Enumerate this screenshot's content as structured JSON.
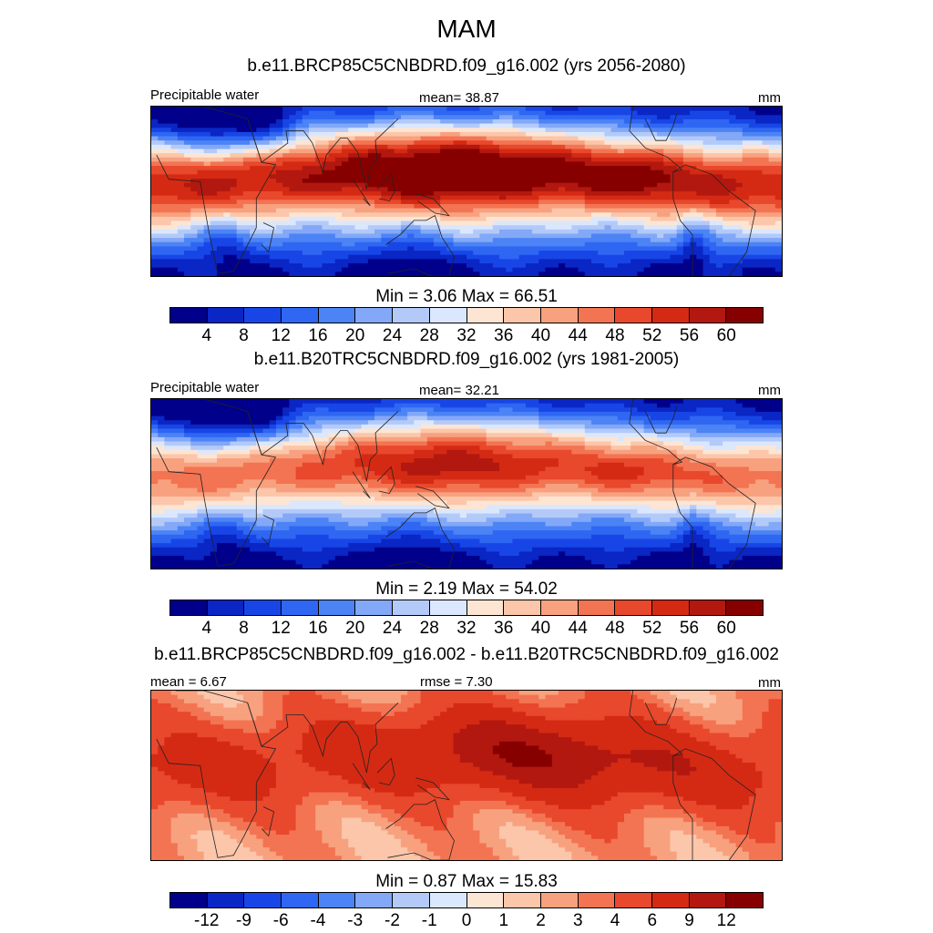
{
  "title": "MAM",
  "colors": {
    "scale": [
      "#00008b",
      "#0a26c4",
      "#1846e6",
      "#2f66f2",
      "#4c83f5",
      "#83a8f7",
      "#b3caf9",
      "#dbe7fc",
      "#fde5d3",
      "#fbc6aa",
      "#f8a17f",
      "#f37452",
      "#e8482c",
      "#d42a14",
      "#b2180f",
      "#870000"
    ],
    "coast": "#222222"
  },
  "panels": [
    {
      "title": "b.e11.BRCP85C5CNBDRD.f09_g16.002 (yrs 2056-2080)",
      "left_label": "Precipitable water",
      "center_label": "mean=  38.87",
      "right_label": "mm",
      "minmax": "Min =   3.06 Max =  66.51",
      "ticks": [
        "4",
        "8",
        "12",
        "16",
        "20",
        "24",
        "28",
        "32",
        "36",
        "40",
        "44",
        "48",
        "52",
        "56",
        "60"
      ],
      "field": "future"
    },
    {
      "title": "b.e11.B20TRC5CNBDRD.f09_g16.002 (yrs 1981-2005)",
      "left_label": "Precipitable water",
      "center_label": "mean=  32.21",
      "right_label": "mm",
      "minmax": "Min =   2.19 Max =  54.02",
      "ticks": [
        "4",
        "8",
        "12",
        "16",
        "20",
        "24",
        "28",
        "32",
        "36",
        "40",
        "44",
        "48",
        "52",
        "56",
        "60"
      ],
      "field": "historical"
    },
    {
      "title": "b.e11.BRCP85C5CNBDRD.f09_g16.002 - b.e11.B20TRC5CNBDRD.f09_g16.002",
      "left_label": "mean =   6.67",
      "center_label": "rmse =   7.30",
      "right_label": "mm",
      "minmax": "Min =   0.87 Max =  15.83",
      "ticks": [
        "-12",
        "-9",
        "-6",
        "-4",
        "-3",
        "-2",
        "-1",
        "0",
        "1",
        "2",
        "3",
        "4",
        "6",
        "9",
        "12"
      ],
      "field": "difference"
    }
  ]
}
